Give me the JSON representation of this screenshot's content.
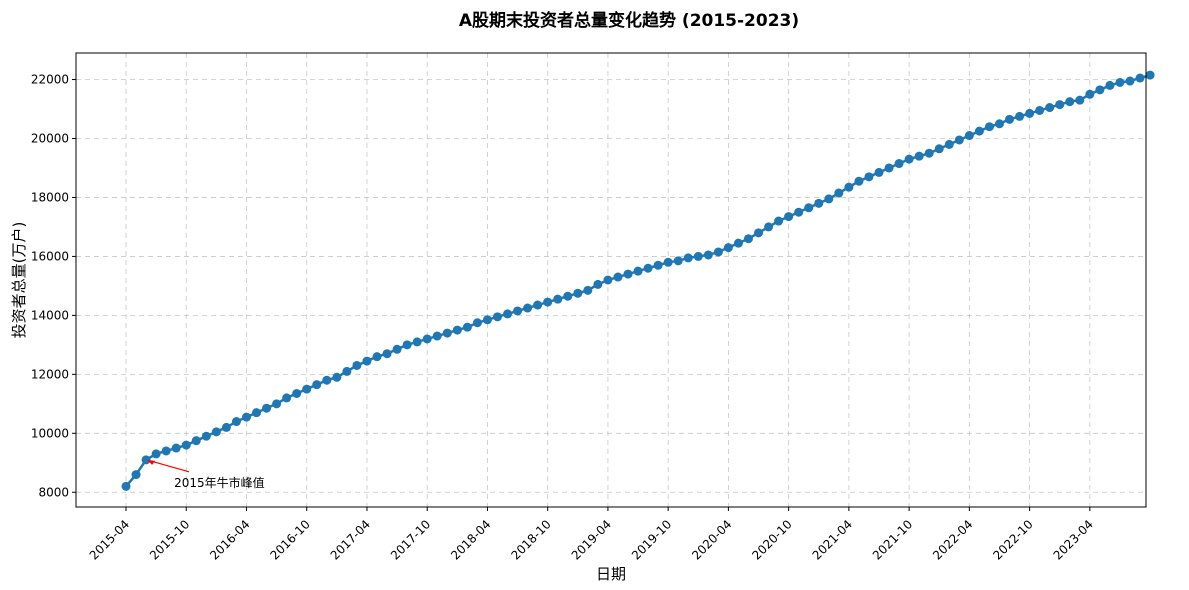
{
  "chart_data": {
    "type": "line",
    "title": "A股期末投资者总量变化趋势 (2015-2023)",
    "xlabel": "日期",
    "ylabel": "投资者总量(万户)",
    "x_start": "2015-04",
    "x_tick_labels": [
      "2015-04",
      "2015-10",
      "2016-04",
      "2016-10",
      "2017-04",
      "2017-10",
      "2018-04",
      "2018-10",
      "2019-04",
      "2019-10",
      "2020-04",
      "2020-10",
      "2021-04",
      "2021-10",
      "2022-04",
      "2022-10",
      "2023-04"
    ],
    "y_ticks": [
      8000,
      10000,
      12000,
      14000,
      16000,
      18000,
      20000,
      22000
    ],
    "ylim": [
      7500,
      22900
    ],
    "grid": true,
    "series": [
      {
        "color": "#1f77b4",
        "values": [
          8200,
          8600,
          9100,
          9300,
          9400,
          9500,
          9600,
          9750,
          9900,
          10050,
          10200,
          10400,
          10550,
          10700,
          10850,
          11000,
          11200,
          11350,
          11500,
          11650,
          11800,
          11900,
          12100,
          12300,
          12450,
          12600,
          12700,
          12850,
          13000,
          13100,
          13200,
          13300,
          13400,
          13500,
          13600,
          13750,
          13850,
          13950,
          14050,
          14150,
          14250,
          14350,
          14450,
          14550,
          14650,
          14750,
          14850,
          15050,
          15200,
          15300,
          15400,
          15500,
          15600,
          15700,
          15800,
          15850,
          15950,
          16000,
          16050,
          16150,
          16300,
          16450,
          16600,
          16800,
          17000,
          17200,
          17350,
          17500,
          17650,
          17800,
          17950,
          18150,
          18350,
          18550,
          18700,
          18850,
          19000,
          19150,
          19300,
          19400,
          19500,
          19650,
          19800,
          19950,
          20100,
          20250,
          20400,
          20500,
          20650,
          20750,
          20850,
          20950,
          21050,
          21150,
          21250,
          21300,
          21500,
          21650,
          21800,
          21900,
          21950,
          22050,
          22150
        ]
      }
    ],
    "annotation": {
      "text": "2015年牛市峰值",
      "x": "2015-06",
      "y": 9100
    }
  }
}
